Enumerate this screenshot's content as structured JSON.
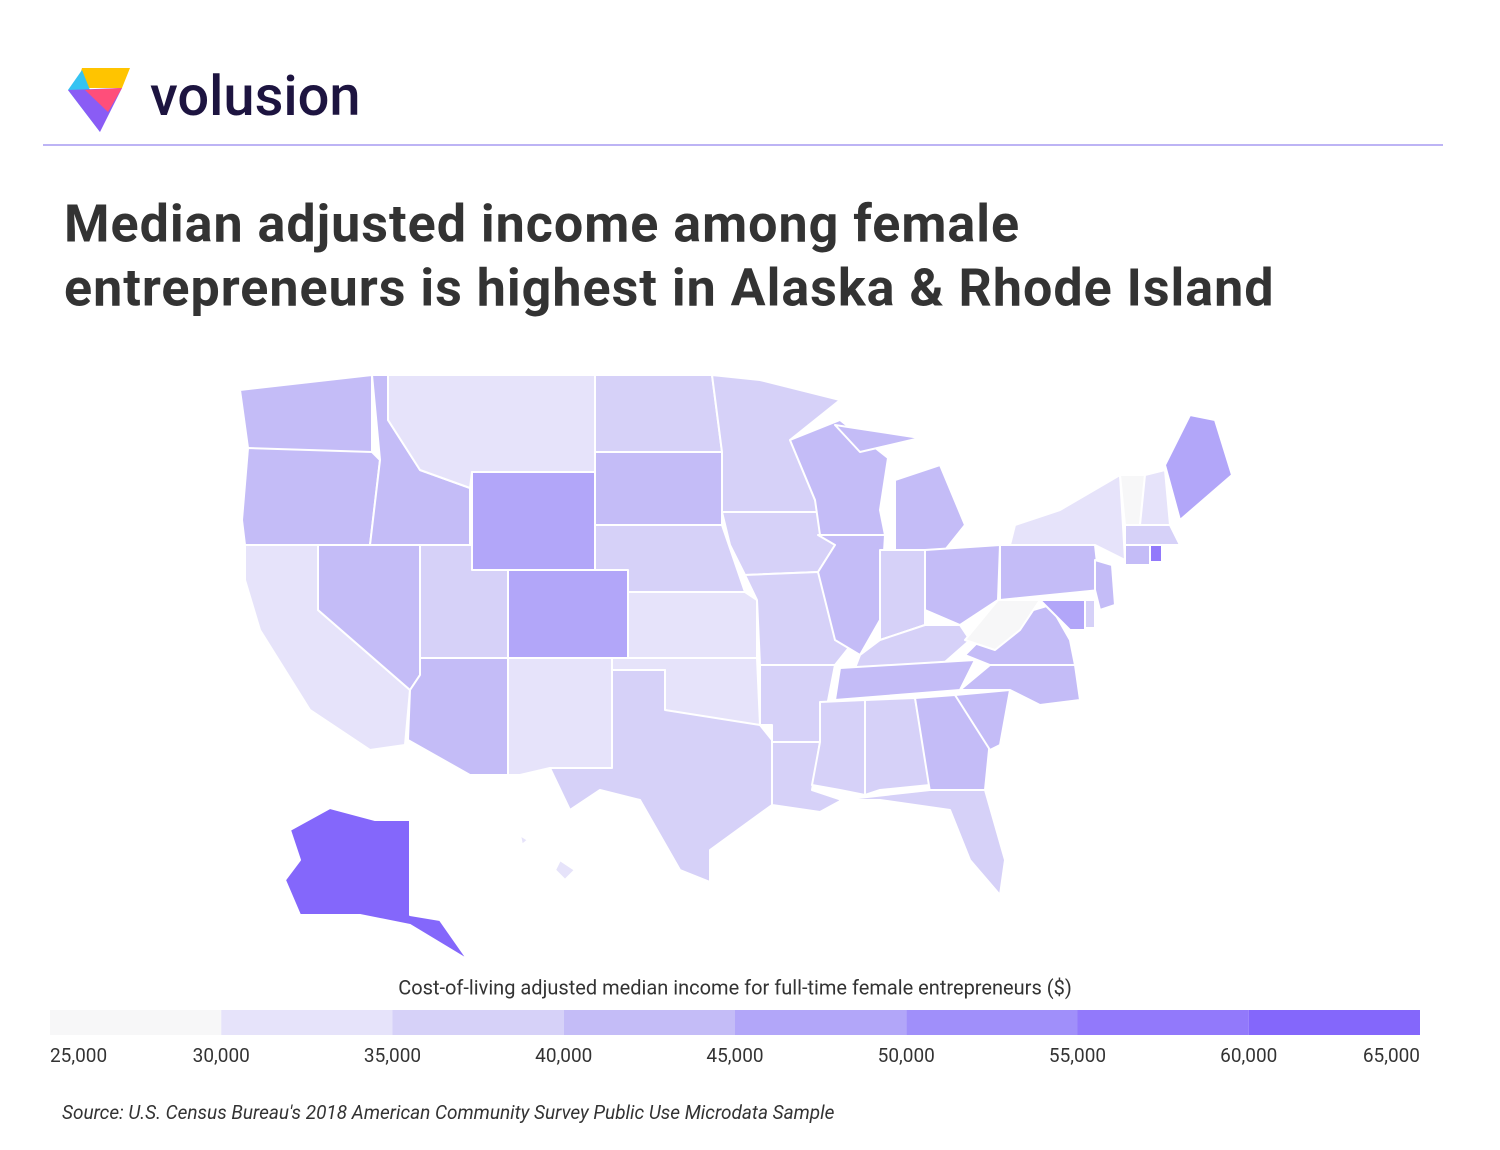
{
  "header": {
    "brand": "volusion"
  },
  "chart_data": {
    "type": "choropleth",
    "title_lines": [
      "Median adjusted income among female",
      "entrepreneurs is highest in Alaska & Rhode Island"
    ],
    "values": [
      42000,
      42000,
      33000,
      42000,
      42000,
      32000,
      47000,
      37000,
      47000,
      43000,
      32000,
      37000,
      42000,
      37000,
      33000,
      33000,
      36000,
      35000,
      35000,
      35000,
      36000,
      36000,
      42000,
      43000,
      42000,
      35000,
      42000,
      35000,
      43000,
      35000,
      35000,
      42000,
      37000,
      43000,
      43000,
      42000,
      29000,
      42000,
      33000,
      28000,
      33000,
      45000,
      35000,
      42000,
      57000,
      43000,
      35000,
      45000,
      62000,
      33000
    ],
    "legend": {
      "title": "Cost-of-living adjusted median income for full-time female entrepreneurs ($)",
      "bins": [
        25000,
        30000,
        35000,
        40000,
        45000,
        50000,
        55000,
        60000,
        65000
      ],
      "colors": [
        "#f7f7f8",
        "#e6e3fa",
        "#d6d1f8",
        "#c4bcf7",
        "#b2a6f9",
        "#a08ffa",
        "#9279fb",
        "#8467fb"
      ],
      "ticks": [
        {
          "value": 25000,
          "label": "25,000"
        },
        {
          "value": 30000,
          "label": "30,000"
        },
        {
          "value": 35000,
          "label": "35,000"
        },
        {
          "value": 40000,
          "label": "40,000"
        },
        {
          "value": 45000,
          "label": "45,000"
        },
        {
          "value": 50000,
          "label": "50,000"
        },
        {
          "value": 55000,
          "label": "55,000"
        },
        {
          "value": 60000,
          "label": "60,000"
        },
        {
          "value": 65000,
          "label": "65,000"
        }
      ]
    },
    "source": "Source: U.S. Census Bureau's 2018 American Community Survey Public Use Microdata Sample"
  }
}
